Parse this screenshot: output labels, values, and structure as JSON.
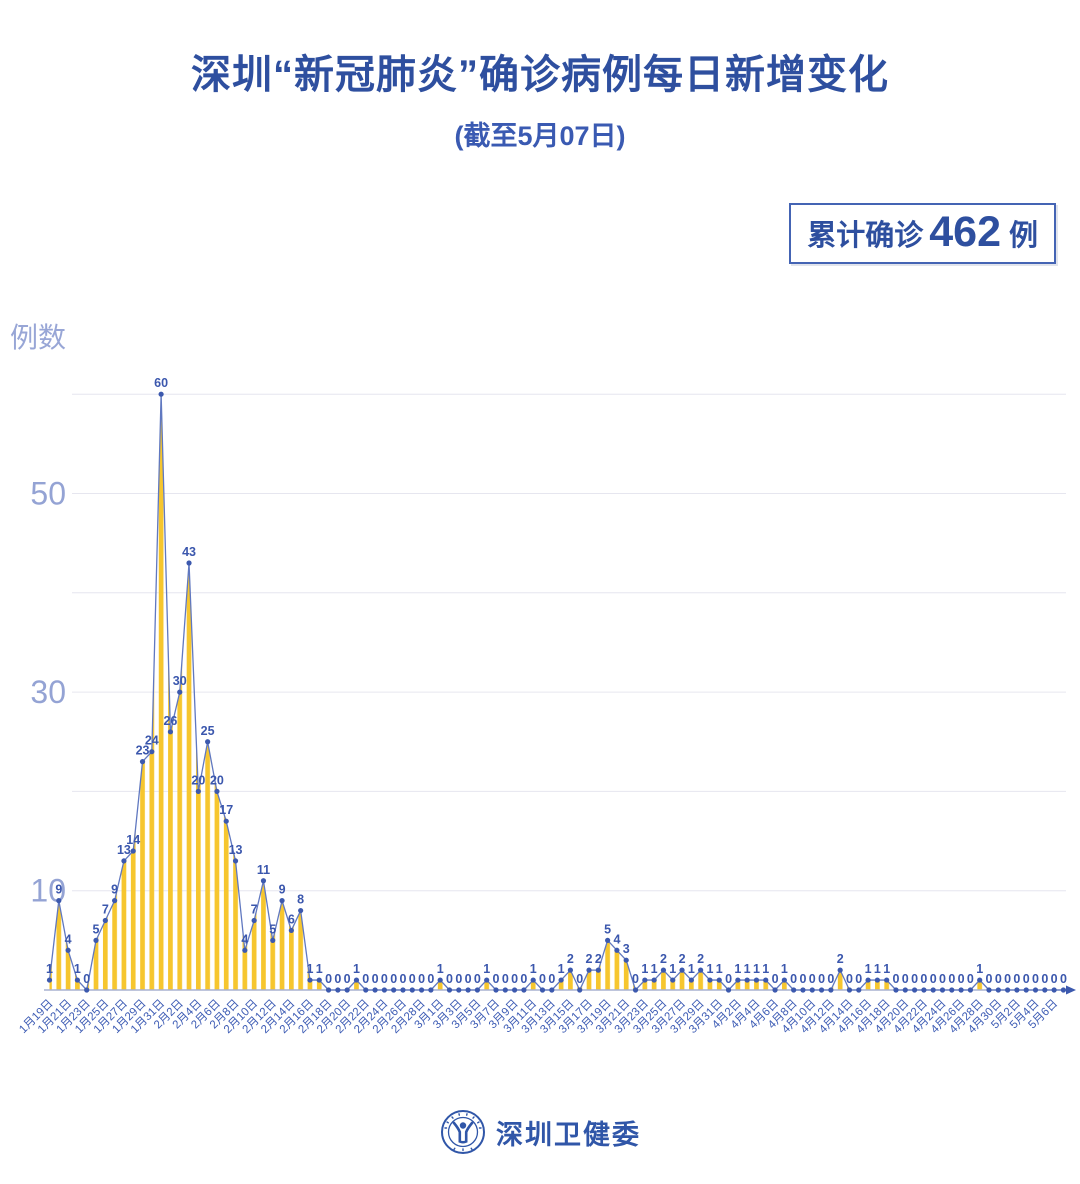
{
  "title": "深圳“新冠肺炎”确诊病例每日新增变化",
  "subtitle": "(截至5月07日)",
  "badge": {
    "prefix": "累计确诊",
    "value": "462",
    "suffix": "例"
  },
  "footer": {
    "org_name": "深圳卫健委",
    "logo": "shenzhen-health-commission-emblem"
  },
  "chart_data": {
    "type": "area",
    "title": "深圳“新冠肺炎”确诊病例每日新增变化",
    "ylabel": "例数",
    "xlabel": "",
    "ylim": [
      0,
      60
    ],
    "y_gridlines": [
      10,
      20,
      30,
      40,
      50,
      60
    ],
    "y_tick_labels": [
      10,
      30,
      50
    ],
    "grid": "horizontal-on",
    "legend": "none",
    "point_value_labels": "all",
    "tick_every": 2,
    "x_tick_labels": [
      "1月19日",
      "1月21日",
      "1月23日",
      "1月25日",
      "1月27日",
      "1月29日",
      "1月31日",
      "2月2日",
      "2月4日",
      "2月6日",
      "2月8日",
      "2月10日",
      "2月12日",
      "2月14日",
      "2月16日",
      "2月18日",
      "2月20日",
      "2月22日",
      "2月24日",
      "2月26日",
      "2月28日",
      "3月1日",
      "3月3日",
      "3月5日",
      "3月7日",
      "3月9日",
      "3月11日",
      "3月13日",
      "3月15日",
      "3月17日",
      "3月19日",
      "3月21日",
      "3月23日",
      "3月25日",
      "3月27日",
      "3月29日",
      "3月31日",
      "4月2日",
      "4月4日",
      "4月6日",
      "4月8日",
      "4月10日",
      "4月12日",
      "4月14日",
      "4月16日",
      "4月18日",
      "4月20日",
      "4月22日",
      "4月24日",
      "4月26日",
      "4月28日",
      "4月30日",
      "5月2日",
      "5月4日",
      "5月6日"
    ],
    "values": [
      1,
      9,
      4,
      1,
      0,
      5,
      7,
      9,
      13,
      14,
      23,
      24,
      60,
      26,
      30,
      43,
      20,
      25,
      20,
      17,
      13,
      4,
      7,
      11,
      5,
      9,
      6,
      8,
      1,
      1,
      0,
      0,
      0,
      1,
      0,
      0,
      0,
      0,
      0,
      0,
      0,
      0,
      1,
      0,
      0,
      0,
      0,
      1,
      0,
      0,
      0,
      0,
      1,
      0,
      0,
      1,
      2,
      0,
      2,
      2,
      5,
      4,
      3,
      0,
      1,
      1,
      2,
      1,
      2,
      1,
      2,
      1,
      1,
      0,
      1,
      1,
      1,
      1,
      0,
      1,
      0,
      0,
      0,
      0,
      0,
      2,
      0,
      0,
      1,
      1,
      1,
      0,
      0,
      0,
      0,
      0,
      0,
      0,
      0,
      0,
      1,
      0,
      0,
      0,
      0,
      0,
      0,
      0,
      0,
      0
    ],
    "total": 462,
    "colors": {
      "line": "#6078c0",
      "dot": "#3c59ae",
      "bar_stripe": "#f6c62e",
      "grid_line": "#e6e6ef",
      "axis_line": "#a8b2d0",
      "value_label": "#3b57ad",
      "x_tick_label": "#3c5bb4",
      "y_tick_label": "#94a3d4",
      "title_blue": "#2e4f9f"
    }
  }
}
